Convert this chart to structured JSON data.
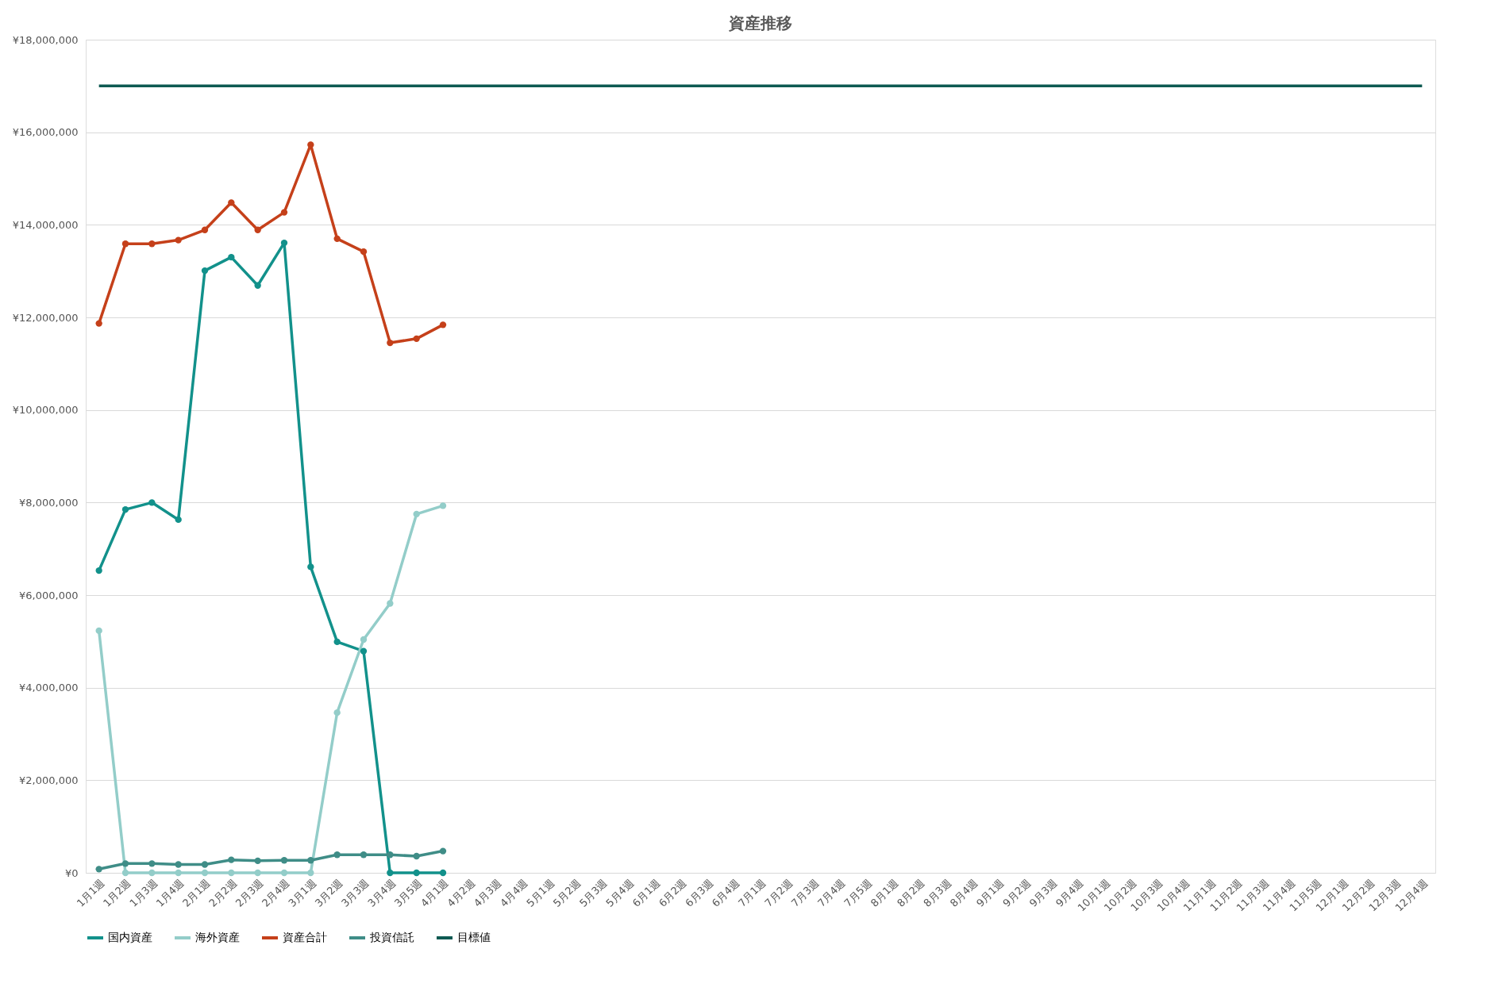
{
  "chart_data": {
    "type": "line",
    "title": "資産推移",
    "categories": [
      "1月1週",
      "1月2週",
      "1月3週",
      "1月4週",
      "2月1週",
      "2月2週",
      "2月3週",
      "2月4週",
      "3月1週",
      "3月2週",
      "3月3週",
      "3月4週",
      "3月5週",
      "4月1週",
      "4月2週",
      "4月3週",
      "4月4週",
      "5月1週",
      "5月2週",
      "5月3週",
      "5月4週",
      "6月1週",
      "6月2週",
      "6月3週",
      "6月4週",
      "7月1週",
      "7月2週",
      "7月3週",
      "7月4週",
      "7月5週",
      "8月1週",
      "8月2週",
      "8月3週",
      "8月4週",
      "9月1週",
      "9月2週",
      "9月3週",
      "9月4週",
      "10月1週",
      "10月2週",
      "10月3週",
      "10月4週",
      "11月1週",
      "11月2週",
      "11月3週",
      "11月4週",
      "11月5週",
      "12月1週",
      "12月2週",
      "12月3週",
      "12月4週"
    ],
    "series": [
      {
        "name": "国内資産",
        "color": "#12918b",
        "values": [
          6530000,
          7850000,
          8000000,
          7630000,
          13010000,
          13300000,
          12690000,
          13610000,
          6610000,
          4990000,
          4790000,
          0,
          0,
          0,
          null,
          null,
          null,
          null,
          null,
          null,
          null,
          null,
          null,
          null,
          null,
          null,
          null,
          null,
          null,
          null,
          null,
          null,
          null,
          null,
          null,
          null,
          null,
          null,
          null,
          null,
          null,
          null,
          null,
          null,
          null,
          null,
          null,
          null,
          null,
          null,
          null
        ]
      },
      {
        "name": "海外資産",
        "color": "#93cdc9",
        "values": [
          5230000,
          0,
          0,
          0,
          0,
          0,
          0,
          0,
          0,
          3460000,
          5040000,
          5820000,
          7750000,
          7930000,
          null,
          null,
          null,
          null,
          null,
          null,
          null,
          null,
          null,
          null,
          null,
          null,
          null,
          null,
          null,
          null,
          null,
          null,
          null,
          null,
          null,
          null,
          null,
          null,
          null,
          null,
          null,
          null,
          null,
          null,
          null,
          null,
          null,
          null,
          null,
          null,
          null
        ]
      },
      {
        "name": "資産合計",
        "color": "#c5401a",
        "values": [
          11870000,
          13590000,
          13590000,
          13670000,
          13890000,
          14480000,
          13890000,
          14270000,
          15730000,
          13700000,
          13420000,
          11450000,
          11540000,
          11840000,
          null,
          null,
          null,
          null,
          null,
          null,
          null,
          null,
          null,
          null,
          null,
          null,
          null,
          null,
          null,
          null,
          null,
          null,
          null,
          null,
          null,
          null,
          null,
          null,
          null,
          null,
          null,
          null,
          null,
          null,
          null,
          null,
          null,
          null,
          null,
          null,
          null
        ]
      },
      {
        "name": "投資信託",
        "color": "#3f8d87",
        "values": [
          80000,
          200000,
          200000,
          180000,
          180000,
          280000,
          260000,
          270000,
          270000,
          390000,
          390000,
          390000,
          360000,
          470000,
          null,
          null,
          null,
          null,
          null,
          null,
          null,
          null,
          null,
          null,
          null,
          null,
          null,
          null,
          null,
          null,
          null,
          null,
          null,
          null,
          null,
          null,
          null,
          null,
          null,
          null,
          null,
          null,
          null,
          null,
          null,
          null,
          null,
          null,
          null,
          null,
          null
        ]
      },
      {
        "name": "目標値",
        "color": "#0e5a52",
        "marker": "none",
        "values": [
          17000000,
          17000000,
          17000000,
          17000000,
          17000000,
          17000000,
          17000000,
          17000000,
          17000000,
          17000000,
          17000000,
          17000000,
          17000000,
          17000000,
          17000000,
          17000000,
          17000000,
          17000000,
          17000000,
          17000000,
          17000000,
          17000000,
          17000000,
          17000000,
          17000000,
          17000000,
          17000000,
          17000000,
          17000000,
          17000000,
          17000000,
          17000000,
          17000000,
          17000000,
          17000000,
          17000000,
          17000000,
          17000000,
          17000000,
          17000000,
          17000000,
          17000000,
          17000000,
          17000000,
          17000000,
          17000000,
          17000000,
          17000000,
          17000000,
          17000000,
          17000000
        ]
      }
    ],
    "ylim": [
      0,
      18000000
    ],
    "yticks": [
      {
        "value": 0,
        "label": "¥0"
      },
      {
        "value": 2000000,
        "label": "¥2,000,000"
      },
      {
        "value": 4000000,
        "label": "¥4,000,000"
      },
      {
        "value": 6000000,
        "label": "¥6,000,000"
      },
      {
        "value": 8000000,
        "label": "¥8,000,000"
      },
      {
        "value": 10000000,
        "label": "¥10,000,000"
      },
      {
        "value": 12000000,
        "label": "¥12,000,000"
      },
      {
        "value": 14000000,
        "label": "¥14,000,000"
      },
      {
        "value": 16000000,
        "label": "¥16,000,000"
      },
      {
        "value": 18000000,
        "label": "¥18,000,000"
      }
    ],
    "grid": "y",
    "legend": "bottom",
    "marker": "circle",
    "line_style": "solid"
  }
}
